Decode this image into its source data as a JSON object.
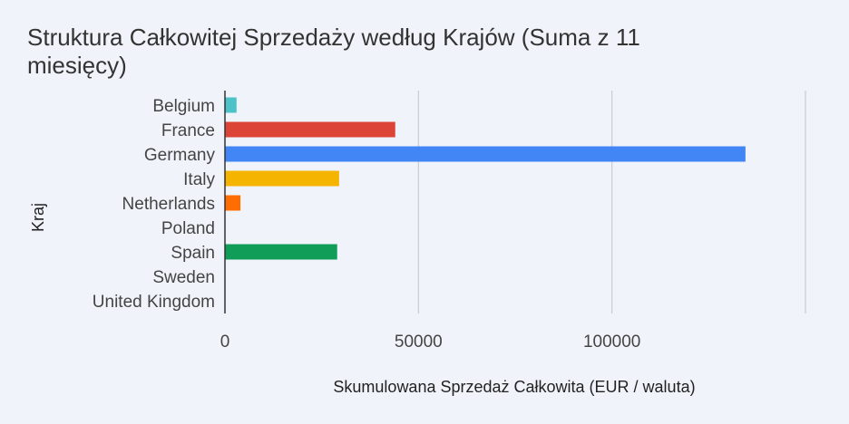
{
  "chart_data": {
    "type": "bar",
    "orientation": "horizontal",
    "title_lines": [
      "Struktura Całkowitej Sprzedaży według Krajów (Suma z 11",
      "miesięcy)"
    ],
    "xlabel": "Skumulowana Sprzedaż Całkowita (EUR / waluta)",
    "ylabel": "Kraj",
    "xlim": [
      0,
      150000
    ],
    "xticks": [
      0,
      50000,
      100000
    ],
    "xtick_labels": [
      "0",
      "50000",
      "100000"
    ],
    "grid": true,
    "legend": "none",
    "categories": [
      "Belgium",
      "France",
      "Germany",
      "Italy",
      "Netherlands",
      "Poland",
      "Spain",
      "Sweden",
      "United Kingdom"
    ],
    "values": [
      3000,
      44000,
      134500,
      29500,
      4000,
      0,
      29000,
      0,
      0
    ],
    "colors": [
      "#4dc3c9",
      "#db4437",
      "#4285f4",
      "#f4b400",
      "#ff6d00",
      "#999999",
      "#0f9d58",
      "#999999",
      "#999999"
    ]
  }
}
